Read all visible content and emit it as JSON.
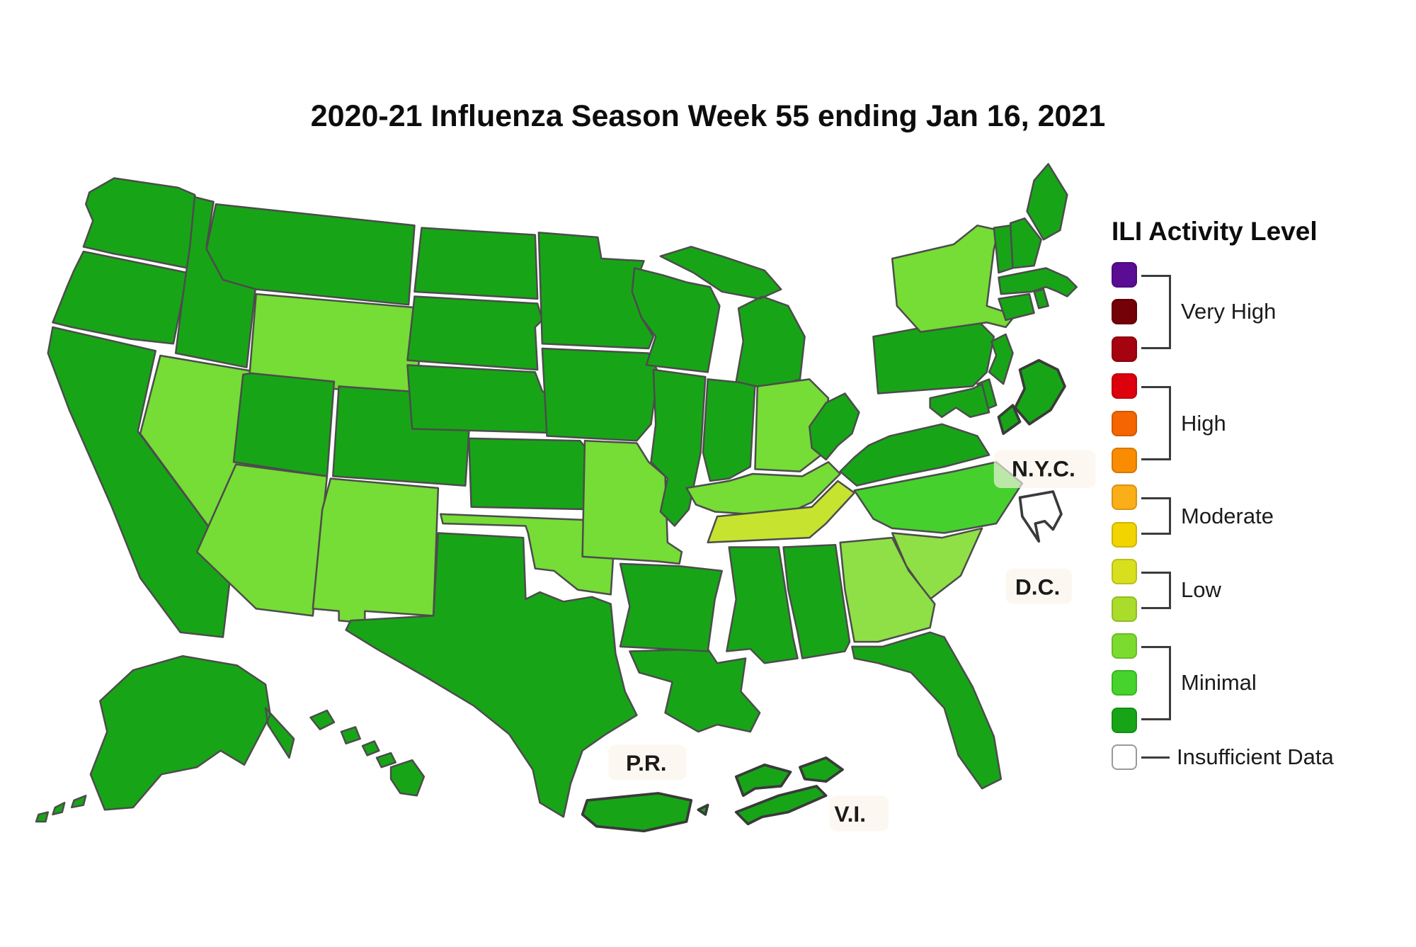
{
  "title": "2020-21 Influenza Season Week 55 ending Jan 16, 2021",
  "legend": {
    "title": "ILI Activity Level",
    "groups": [
      {
        "label": "Very High",
        "colors": [
          "#5A0C93",
          "#740008",
          "#A50310"
        ]
      },
      {
        "label": "High",
        "colors": [
          "#DD000D",
          "#F56600",
          "#F98C00"
        ]
      },
      {
        "label": "Moderate",
        "colors": [
          "#FBAE17",
          "#F2D400"
        ]
      },
      {
        "label": "Low",
        "colors": [
          "#D8E01E",
          "#A9DC2B"
        ]
      },
      {
        "label": "Minimal",
        "colors": [
          "#7CDB2F",
          "#45D32C",
          "#17A517"
        ]
      }
    ],
    "insufficient_label": "Insufficient Data",
    "insufficient_color": "#FFFFFF"
  },
  "map": {
    "border_color": "#4C4C4C",
    "inset_border_color": "#3A3A3A",
    "label_bg_color": "#FAF5EA",
    "palette": {
      "1": "#17A517",
      "2": "#46D02E",
      "3": "#76DC36",
      "4": "#8FE046",
      "5": "#C6E42F",
      "X": "#FFFFFF"
    },
    "inset_labels": {
      "nyc": "N.Y.C.",
      "dc": "D.C.",
      "pr": "P.R.",
      "vi": "V.I."
    },
    "states": [
      {
        "id": "WA",
        "level": "1"
      },
      {
        "id": "OR",
        "level": "1"
      },
      {
        "id": "CA",
        "level": "1"
      },
      {
        "id": "NV",
        "level": "3"
      },
      {
        "id": "ID",
        "level": "1"
      },
      {
        "id": "MT",
        "level": "1"
      },
      {
        "id": "WY",
        "level": "3"
      },
      {
        "id": "UT",
        "level": "1"
      },
      {
        "id": "CO",
        "level": "1"
      },
      {
        "id": "AZ",
        "level": "3"
      },
      {
        "id": "NM",
        "level": "3"
      },
      {
        "id": "ND",
        "level": "1"
      },
      {
        "id": "SD",
        "level": "1"
      },
      {
        "id": "NE",
        "level": "1"
      },
      {
        "id": "KS",
        "level": "1"
      },
      {
        "id": "OK",
        "level": "3"
      },
      {
        "id": "TX",
        "level": "1"
      },
      {
        "id": "MN",
        "level": "1"
      },
      {
        "id": "IA",
        "level": "1"
      },
      {
        "id": "MO",
        "level": "3"
      },
      {
        "id": "WI",
        "level": "1"
      },
      {
        "id": "IL",
        "level": "1"
      },
      {
        "id": "IN",
        "level": "1"
      },
      {
        "id": "MI",
        "level": "1"
      },
      {
        "id": "OH",
        "level": "3"
      },
      {
        "id": "KY",
        "level": "3"
      },
      {
        "id": "TN",
        "level": "5"
      },
      {
        "id": "WV",
        "level": "1"
      },
      {
        "id": "VA",
        "level": "1"
      },
      {
        "id": "NC",
        "level": "2"
      },
      {
        "id": "SC",
        "level": "4"
      },
      {
        "id": "GA",
        "level": "4"
      },
      {
        "id": "AL",
        "level": "1"
      },
      {
        "id": "MS",
        "level": "1"
      },
      {
        "id": "FL",
        "level": "1"
      },
      {
        "id": "LA",
        "level": "1"
      },
      {
        "id": "AR",
        "level": "1"
      },
      {
        "id": "PA",
        "level": "1"
      },
      {
        "id": "NY",
        "level": "3"
      },
      {
        "id": "NJ",
        "level": "1"
      },
      {
        "id": "DE",
        "level": "1"
      },
      {
        "id": "MD",
        "level": "1"
      },
      {
        "id": "CT",
        "level": "1"
      },
      {
        "id": "RI",
        "level": "1"
      },
      {
        "id": "MA",
        "level": "1"
      },
      {
        "id": "VT",
        "level": "1"
      },
      {
        "id": "NH",
        "level": "1"
      },
      {
        "id": "ME",
        "level": "1"
      },
      {
        "id": "AK",
        "level": "1"
      },
      {
        "id": "HI",
        "level": "1"
      },
      {
        "id": "NYC",
        "level": "1"
      },
      {
        "id": "DC",
        "level": "X"
      },
      {
        "id": "PR",
        "level": "1"
      },
      {
        "id": "VI",
        "level": "1"
      }
    ]
  }
}
